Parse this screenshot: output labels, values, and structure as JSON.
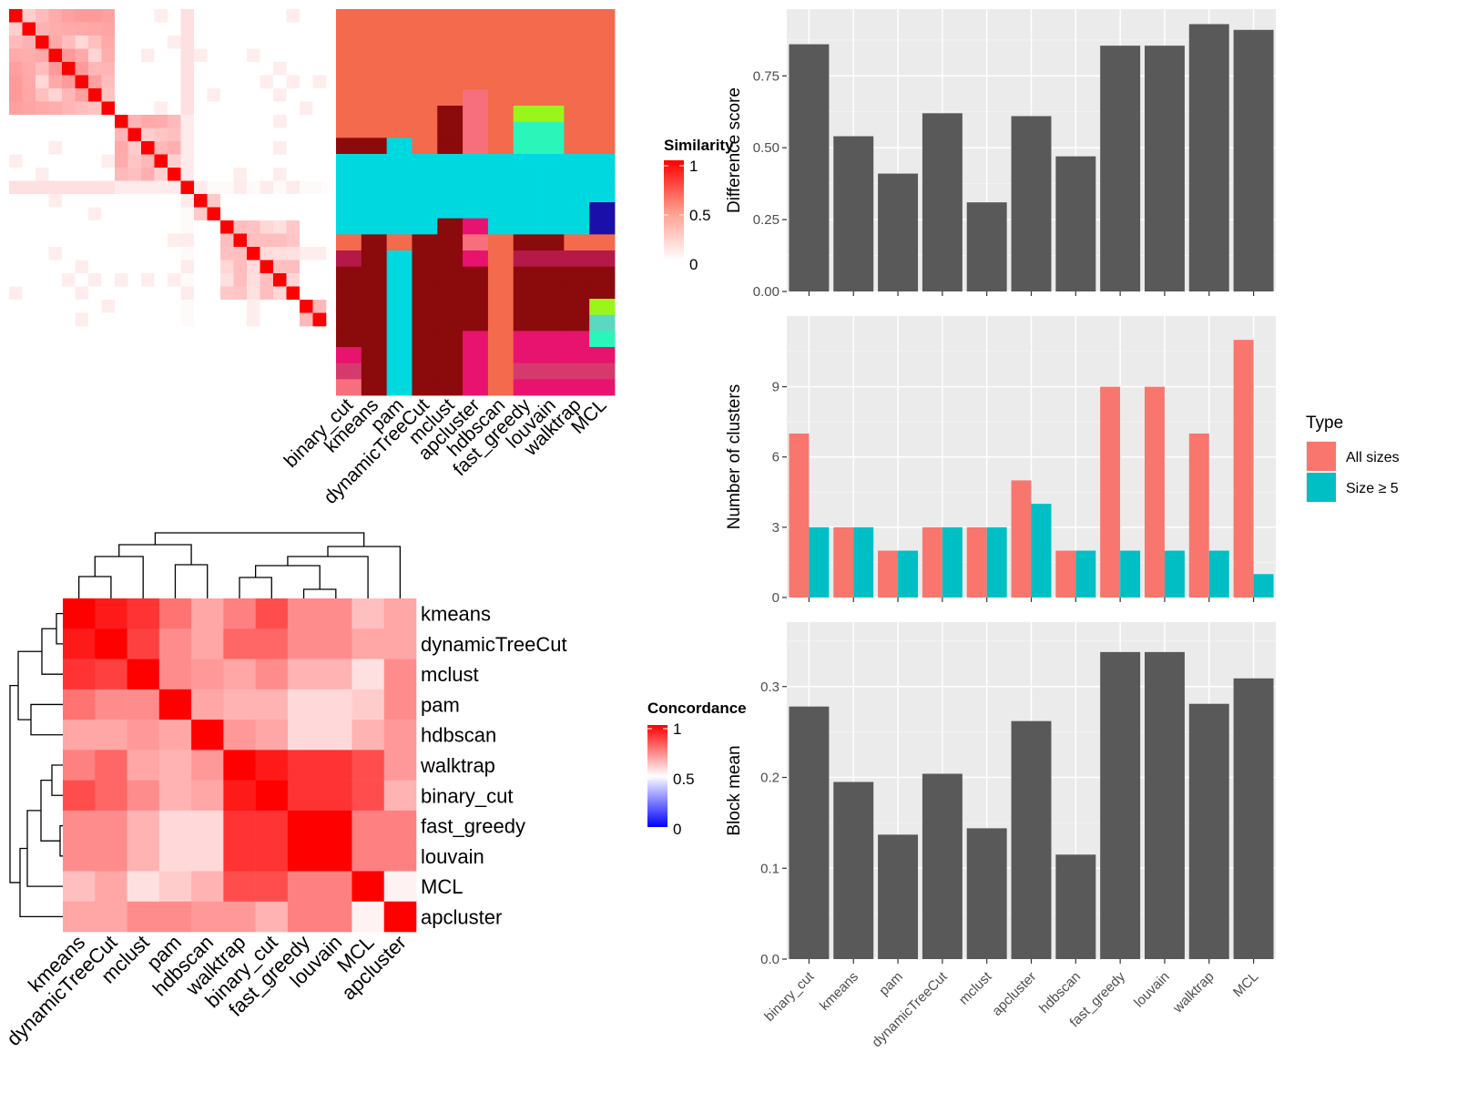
{
  "chart_data": [
    {
      "type": "heatmap",
      "name": "method_similarity_heatmap",
      "legend_title": "Similarity",
      "legend_ticks": [
        "1",
        "0.5",
        "0"
      ],
      "methods": [
        "binary_cut",
        "kmeans",
        "pam",
        "dynamicTreeCut",
        "mclust",
        "apcluster",
        "hdbscan",
        "fast_greedy",
        "louvain",
        "walktrap",
        "MCL"
      ],
      "n_terms": 24,
      "term_blocks": [
        8,
        5,
        1,
        2,
        6,
        2
      ],
      "cluster_color_grid": [
        [
          "#F36A4C",
          "#F36A4C",
          "#F36A4C",
          "#F36A4C",
          "#F36A4C",
          "#F36A4C",
          "#F36A4C",
          "#F36A4C",
          "#F36A4C",
          "#F36A4C",
          "#F36A4C"
        ],
        [
          "#F36A4C",
          "#F36A4C",
          "#F36A4C",
          "#F36A4C",
          "#F36A4C",
          "#F36A4C",
          "#F36A4C",
          "#F36A4C",
          "#F36A4C",
          "#F36A4C",
          "#F36A4C"
        ],
        [
          "#F36A4C",
          "#F36A4C",
          "#F36A4C",
          "#F36A4C",
          "#F36A4C",
          "#F36A4C",
          "#F36A4C",
          "#F36A4C",
          "#F36A4C",
          "#F36A4C",
          "#F36A4C"
        ],
        [
          "#F36A4C",
          "#F36A4C",
          "#F36A4C",
          "#F36A4C",
          "#F36A4C",
          "#F36A4C",
          "#F36A4C",
          "#F36A4C",
          "#F36A4C",
          "#F36A4C",
          "#F36A4C"
        ],
        [
          "#F36A4C",
          "#F36A4C",
          "#F36A4C",
          "#F36A4C",
          "#F36A4C",
          "#F36A4C",
          "#F36A4C",
          "#F36A4C",
          "#F36A4C",
          "#F36A4C",
          "#F36A4C"
        ],
        [
          "#F36A4C",
          "#F36A4C",
          "#F36A4C",
          "#F36A4C",
          "#F36A4C",
          "#F76F7D",
          "#F36A4C",
          "#F36A4C",
          "#F36A4C",
          "#F36A4C",
          "#F36A4C"
        ],
        [
          "#F36A4C",
          "#F36A4C",
          "#F36A4C",
          "#F36A4C",
          "#8B0A0C",
          "#F76F7D",
          "#F36A4C",
          "#9BF51A",
          "#9BF51A",
          "#F36A4C",
          "#F36A4C"
        ],
        [
          "#F36A4C",
          "#F36A4C",
          "#F36A4C",
          "#F36A4C",
          "#8B0A0C",
          "#F76F7D",
          "#F36A4C",
          "#2CF5B9",
          "#2CF5B9",
          "#F36A4C",
          "#F36A4C"
        ],
        [
          "#8B0A0C",
          "#8B0A0C",
          "#00D8E0",
          "#F36A4C",
          "#8B0A0C",
          "#F76F7D",
          "#F36A4C",
          "#2CF5B9",
          "#2CF5B9",
          "#F36A4C",
          "#F36A4C"
        ],
        [
          "#00D8E0",
          "#00D8E0",
          "#00D8E0",
          "#00D8E0",
          "#00D8E0",
          "#00D8E0",
          "#00D8E0",
          "#00D8E0",
          "#00D8E0",
          "#00D8E0",
          "#00D8E0"
        ],
        [
          "#00D8E0",
          "#00D8E0",
          "#00D8E0",
          "#00D8E0",
          "#00D8E0",
          "#00D8E0",
          "#00D8E0",
          "#00D8E0",
          "#00D8E0",
          "#00D8E0",
          "#00D8E0"
        ],
        [
          "#00D8E0",
          "#00D8E0",
          "#00D8E0",
          "#00D8E0",
          "#00D8E0",
          "#00D8E0",
          "#00D8E0",
          "#00D8E0",
          "#00D8E0",
          "#00D8E0",
          "#00D8E0"
        ],
        [
          "#00D8E0",
          "#00D8E0",
          "#00D8E0",
          "#00D8E0",
          "#00D8E0",
          "#00D8E0",
          "#00D8E0",
          "#00D8E0",
          "#00D8E0",
          "#00D8E0",
          "#1A0FA8"
        ],
        [
          "#00D8E0",
          "#00D8E0",
          "#00D8E0",
          "#00D8E0",
          "#8B0A0C",
          "#E8136E",
          "#00D8E0",
          "#00D8E0",
          "#00D8E0",
          "#00D8E0",
          "#1A0FA8"
        ],
        [
          "#F36A4C",
          "#8B0A0C",
          "#F36A4C",
          "#8B0A0C",
          "#8B0A0C",
          "#F76F7D",
          "#F36A4C",
          "#8B0A0C",
          "#8B0A0C",
          "#F36A4C",
          "#F36A4C"
        ],
        [
          "#B5194A",
          "#8B0A0C",
          "#00D8E0",
          "#8B0A0C",
          "#8B0A0C",
          "#E8136E",
          "#F36A4C",
          "#B5194A",
          "#B5194A",
          "#B5194A",
          "#B5194A"
        ],
        [
          "#8B0A0C",
          "#8B0A0C",
          "#00D8E0",
          "#8B0A0C",
          "#8B0A0C",
          "#8B0A0C",
          "#F36A4C",
          "#8B0A0C",
          "#8B0A0C",
          "#8B0A0C",
          "#8B0A0C"
        ],
        [
          "#8B0A0C",
          "#8B0A0C",
          "#00D8E0",
          "#8B0A0C",
          "#8B0A0C",
          "#8B0A0C",
          "#F36A4C",
          "#8B0A0C",
          "#8B0A0C",
          "#8B0A0C",
          "#8B0A0C"
        ],
        [
          "#8B0A0C",
          "#8B0A0C",
          "#00D8E0",
          "#8B0A0C",
          "#8B0A0C",
          "#8B0A0C",
          "#F36A4C",
          "#8B0A0C",
          "#8B0A0C",
          "#8B0A0C",
          "#9BF51A"
        ],
        [
          "#8B0A0C",
          "#8B0A0C",
          "#00D8E0",
          "#8B0A0C",
          "#8B0A0C",
          "#8B0A0C",
          "#F36A4C",
          "#8B0A0C",
          "#8B0A0C",
          "#8B0A0C",
          "#5BD8C0"
        ],
        [
          "#8B0A0C",
          "#8B0A0C",
          "#00D8E0",
          "#8B0A0C",
          "#8B0A0C",
          "#E8136E",
          "#F36A4C",
          "#E8136E",
          "#E8136E",
          "#E8136E",
          "#2CF5B9"
        ],
        [
          "#E8136E",
          "#8B0A0C",
          "#00D8E0",
          "#8B0A0C",
          "#8B0A0C",
          "#E8136E",
          "#F36A4C",
          "#E8136E",
          "#E8136E",
          "#E8136E",
          "#E8136E"
        ],
        [
          "#D63A6C",
          "#8B0A0C",
          "#00D8E0",
          "#8B0A0C",
          "#8B0A0C",
          "#E8136E",
          "#F36A4C",
          "#D63A6C",
          "#D63A6C",
          "#D63A6C",
          "#D63A6C"
        ],
        [
          "#F76F7D",
          "#8B0A0C",
          "#00D8E0",
          "#8B0A0C",
          "#8B0A0C",
          "#E8136E",
          "#F36A4C",
          "#E8136E",
          "#E8136E",
          "#E8136E",
          "#E8136E"
        ]
      ]
    },
    {
      "type": "heatmap",
      "name": "method_concordance_heatmap",
      "legend_title": "Concordance",
      "legend_ticks": [
        "1",
        "0.5",
        "0"
      ],
      "rows": [
        "kmeans",
        "dynamicTreeCut",
        "mclust",
        "pam",
        "hdbscan",
        "walktrap",
        "binary_cut",
        "fast_greedy",
        "louvain",
        "MCL",
        "apcluster"
      ],
      "values": [
        [
          1.0,
          0.9,
          0.8,
          0.55,
          0.35,
          0.5,
          0.7,
          0.45,
          0.45,
          0.25,
          0.35
        ],
        [
          0.9,
          1.0,
          0.75,
          0.45,
          0.35,
          0.6,
          0.6,
          0.45,
          0.45,
          0.35,
          0.35
        ],
        [
          0.8,
          0.75,
          1.0,
          0.45,
          0.4,
          0.35,
          0.45,
          0.3,
          0.3,
          0.12,
          0.45
        ],
        [
          0.55,
          0.45,
          0.45,
          1.0,
          0.35,
          0.3,
          0.3,
          0.15,
          0.15,
          0.2,
          0.45
        ],
        [
          0.35,
          0.35,
          0.4,
          0.35,
          1.0,
          0.4,
          0.35,
          0.15,
          0.15,
          0.3,
          0.4
        ],
        [
          0.5,
          0.6,
          0.35,
          0.3,
          0.4,
          1.0,
          0.9,
          0.8,
          0.8,
          0.7,
          0.4
        ],
        [
          0.7,
          0.6,
          0.45,
          0.3,
          0.35,
          0.9,
          1.0,
          0.8,
          0.8,
          0.7,
          0.3
        ],
        [
          0.45,
          0.45,
          0.3,
          0.15,
          0.15,
          0.8,
          0.8,
          1.0,
          1.0,
          0.5,
          0.5
        ],
        [
          0.45,
          0.45,
          0.3,
          0.15,
          0.15,
          0.8,
          0.8,
          1.0,
          1.0,
          0.5,
          0.5
        ],
        [
          0.25,
          0.35,
          0.12,
          0.2,
          0.3,
          0.7,
          0.7,
          0.5,
          0.5,
          1.0,
          0.05
        ],
        [
          0.35,
          0.35,
          0.45,
          0.45,
          0.4,
          0.4,
          0.3,
          0.5,
          0.5,
          0.05,
          1.0
        ]
      ]
    },
    {
      "type": "bar",
      "name": "difference_score_bars",
      "categories": [
        "binary_cut",
        "kmeans",
        "pam",
        "dynamicTreeCut",
        "mclust",
        "apcluster",
        "hdbscan",
        "fast_greedy",
        "louvain",
        "walktrap",
        "MCL"
      ],
      "values": [
        0.86,
        0.54,
        0.41,
        0.62,
        0.31,
        0.61,
        0.47,
        0.855,
        0.855,
        0.93,
        0.91
      ],
      "ylabel": "Difference score",
      "ylim": [
        0,
        0.94
      ],
      "y_ticks": [
        "0.00",
        "0.25",
        "0.50",
        "0.75"
      ],
      "bar_color": "#595959"
    },
    {
      "type": "bar",
      "name": "number_of_clusters_bars",
      "categories": [
        "binary_cut",
        "kmeans",
        "pam",
        "dynamicTreeCut",
        "mclust",
        "apcluster",
        "hdbscan",
        "fast_greedy",
        "louvain",
        "walktrap",
        "MCL"
      ],
      "series": [
        {
          "name": "All sizes",
          "color": "#F8766D",
          "values": [
            7,
            3,
            2,
            3,
            3,
            5,
            2,
            9,
            9,
            7,
            11
          ]
        },
        {
          "name": "Size ≥ 5",
          "color": "#00BFC4",
          "values": [
            3,
            3,
            2,
            3,
            3,
            4,
            2,
            2,
            2,
            2,
            1
          ]
        }
      ],
      "ylabel": "Number of clusters",
      "ylim": [
        0,
        11.5
      ],
      "y_ticks": [
        "0",
        "3",
        "6",
        "9"
      ],
      "legend_title": "Type",
      "legend_position": "right"
    },
    {
      "type": "bar",
      "name": "block_mean_bars",
      "categories": [
        "binary_cut",
        "kmeans",
        "pam",
        "dynamicTreeCut",
        "mclust",
        "apcluster",
        "hdbscan",
        "fast_greedy",
        "louvain",
        "walktrap",
        "MCL"
      ],
      "values": [
        0.278,
        0.195,
        0.137,
        0.204,
        0.144,
        0.262,
        0.115,
        0.338,
        0.338,
        0.281,
        0.309
      ],
      "ylabel": "Block mean",
      "ylim": [
        0,
        0.355
      ],
      "y_ticks": [
        "0.0",
        "0.1",
        "0.2",
        "0.3"
      ],
      "bar_color": "#595959"
    }
  ]
}
